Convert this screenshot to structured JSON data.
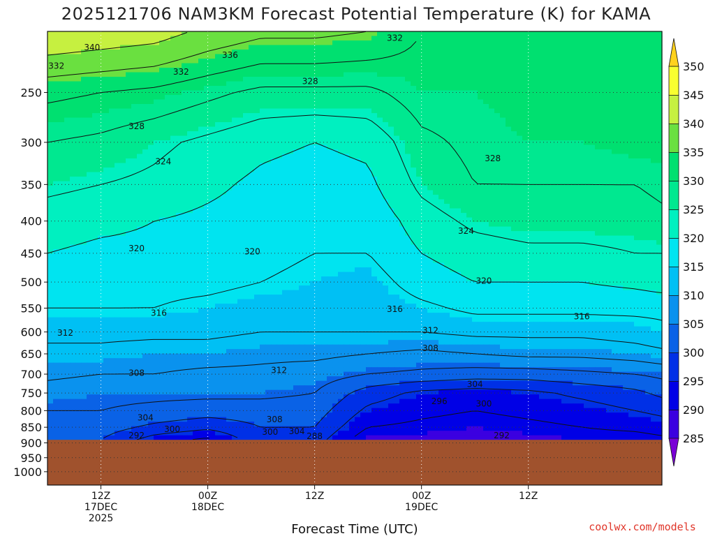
{
  "chart_data": {
    "type": "heatmap",
    "title": "2025121706 NAM3KM Forecast Potential Temperature (K) for KAMA",
    "xlabel": "Forecast Time (UTC)",
    "credit": "coolwx.com/models",
    "y_axis": {
      "type": "log-pressure",
      "unit": "hPa",
      "ylim": [
        1050,
        200
      ],
      "ticks": [
        250,
        300,
        350,
        400,
        450,
        500,
        550,
        600,
        650,
        700,
        750,
        800,
        850,
        900,
        950,
        1000
      ],
      "gridlines": "dotted"
    },
    "x_axis": {
      "xlim_hours": [
        6,
        75
      ],
      "ticks": [
        {
          "hour": 12,
          "lines": [
            "12Z",
            "17DEC",
            "2025"
          ]
        },
        {
          "hour": 24,
          "lines": [
            "00Z",
            "18DEC"
          ]
        },
        {
          "hour": 36,
          "lines": [
            "12Z"
          ]
        },
        {
          "hour": 48,
          "lines": [
            "00Z",
            "19DEC"
          ]
        },
        {
          "hour": 60,
          "lines": [
            "12Z"
          ]
        }
      ],
      "gridlines": "dotted"
    },
    "colorbar": {
      "levels": [
        285,
        290,
        295,
        300,
        305,
        310,
        315,
        320,
        325,
        330,
        335,
        340,
        345,
        350
      ],
      "labels": [
        "285",
        "290",
        "295",
        "300",
        "305",
        "310",
        "315",
        "320",
        "325",
        "330",
        "335",
        "340",
        "345",
        "350"
      ],
      "colors": [
        "#7a00d6",
        "#3b00e0",
        "#0000e6",
        "#0030e6",
        "#0a62e6",
        "#0a92ee",
        "#00c0f4",
        "#00e4f0",
        "#00f0c0",
        "#00e890",
        "#00e070",
        "#6ae040",
        "#c6f040",
        "#f8ff30",
        "#ffd21e"
      ],
      "extend": "both",
      "position": "right"
    },
    "terrain": {
      "surface_pressure_hPa": 890,
      "color": "#a0522d"
    },
    "field": {
      "x_hours": [
        6,
        12,
        18,
        24,
        30,
        36,
        42,
        48,
        54,
        60,
        66,
        72,
        75
      ],
      "p_levels": [
        200,
        250,
        300,
        350,
        400,
        450,
        500,
        550,
        600,
        650,
        700,
        750,
        800,
        850,
        890
      ],
      "theta": [
        [
          344,
          343,
          342,
          339,
          337,
          337,
          336,
          332,
          331,
          331,
          331,
          331,
          331
        ],
        [
          333,
          332,
          331,
          329,
          327,
          327,
          327,
          330,
          330,
          331,
          331,
          331,
          332
        ],
        [
          328,
          327,
          325,
          323,
          321,
          320,
          321,
          327,
          329,
          330,
          330,
          331,
          331
        ],
        [
          325,
          324,
          323,
          321,
          319,
          318,
          319,
          325,
          328,
          328,
          328,
          328,
          329
        ],
        [
          322,
          321,
          320,
          319,
          318,
          317,
          317,
          322,
          325,
          326,
          326,
          326,
          327
        ],
        [
          320,
          319,
          319,
          318,
          317,
          316,
          316,
          320,
          322,
          323,
          323,
          324,
          324
        ],
        [
          318,
          318,
          317,
          317,
          316,
          315,
          314,
          318,
          320,
          320,
          320,
          321,
          322
        ],
        [
          316,
          316,
          316,
          315,
          314,
          314,
          313,
          315,
          317,
          317,
          317,
          317,
          317
        ],
        [
          313,
          313,
          313,
          313,
          312,
          312,
          312,
          312,
          313,
          313,
          313,
          314,
          315
        ],
        [
          311,
          311,
          310,
          310,
          309,
          309,
          308,
          307,
          308,
          309,
          309,
          310,
          311
        ],
        [
          309,
          308,
          308,
          307,
          307,
          306,
          304,
          303,
          302,
          302,
          303,
          304,
          305
        ],
        [
          306,
          305,
          305,
          305,
          305,
          304,
          298,
          295,
          294,
          295,
          297,
          299,
          301
        ],
        [
          304,
          304,
          303,
          302,
          302,
          302,
          295,
          293,
          292,
          293,
          294,
          296,
          297
        ],
        [
          303,
          302,
          299,
          297,
          300,
          300,
          292,
          291,
          290,
          291,
          292,
          293,
          294
        ],
        [
          302,
          300,
          294,
          291,
          299,
          298,
          289,
          289,
          288,
          289,
          290,
          290,
          291
        ]
      ]
    },
    "contour_labels": [
      {
        "text": "340",
        "hour": 11.0,
        "p": 212
      },
      {
        "text": "336",
        "hour": 26.5,
        "p": 218
      },
      {
        "text": "332",
        "hour": 45.0,
        "p": 205
      },
      {
        "text": "332",
        "hour": 7.0,
        "p": 227
      },
      {
        "text": "332",
        "hour": 21.0,
        "p": 232
      },
      {
        "text": "328",
        "hour": 35.5,
        "p": 240
      },
      {
        "text": "328",
        "hour": 16.0,
        "p": 283
      },
      {
        "text": "328",
        "hour": 56.0,
        "p": 318
      },
      {
        "text": "324",
        "hour": 19.0,
        "p": 322
      },
      {
        "text": "324",
        "hour": 53.0,
        "p": 415
      },
      {
        "text": "320",
        "hour": 16.0,
        "p": 442
      },
      {
        "text": "320",
        "hour": 29.0,
        "p": 447
      },
      {
        "text": "320",
        "hour": 55.0,
        "p": 498
      },
      {
        "text": "316",
        "hour": 18.5,
        "p": 560
      },
      {
        "text": "316",
        "hour": 45.0,
        "p": 552
      },
      {
        "text": "316",
        "hour": 66.0,
        "p": 567
      },
      {
        "text": "312",
        "hour": 8.0,
        "p": 602
      },
      {
        "text": "312",
        "hour": 49.0,
        "p": 597
      },
      {
        "text": "312",
        "hour": 32.0,
        "p": 690
      },
      {
        "text": "308",
        "hour": 49.0,
        "p": 637
      },
      {
        "text": "308",
        "hour": 16.0,
        "p": 697
      },
      {
        "text": "304",
        "hour": 54.0,
        "p": 726
      },
      {
        "text": "304",
        "hour": 17.0,
        "p": 821
      },
      {
        "text": "304",
        "hour": 34.0,
        "p": 863
      },
      {
        "text": "308",
        "hour": 31.5,
        "p": 826
      },
      {
        "text": "300",
        "hour": 31.0,
        "p": 865
      },
      {
        "text": "300",
        "hour": 20.0,
        "p": 856
      },
      {
        "text": "300",
        "hour": 55.0,
        "p": 780
      },
      {
        "text": "296",
        "hour": 50.0,
        "p": 773
      },
      {
        "text": "292",
        "hour": 16.0,
        "p": 876
      },
      {
        "text": "292",
        "hour": 57.0,
        "p": 876
      },
      {
        "text": "288",
        "hour": 36.0,
        "p": 878
      }
    ]
  }
}
